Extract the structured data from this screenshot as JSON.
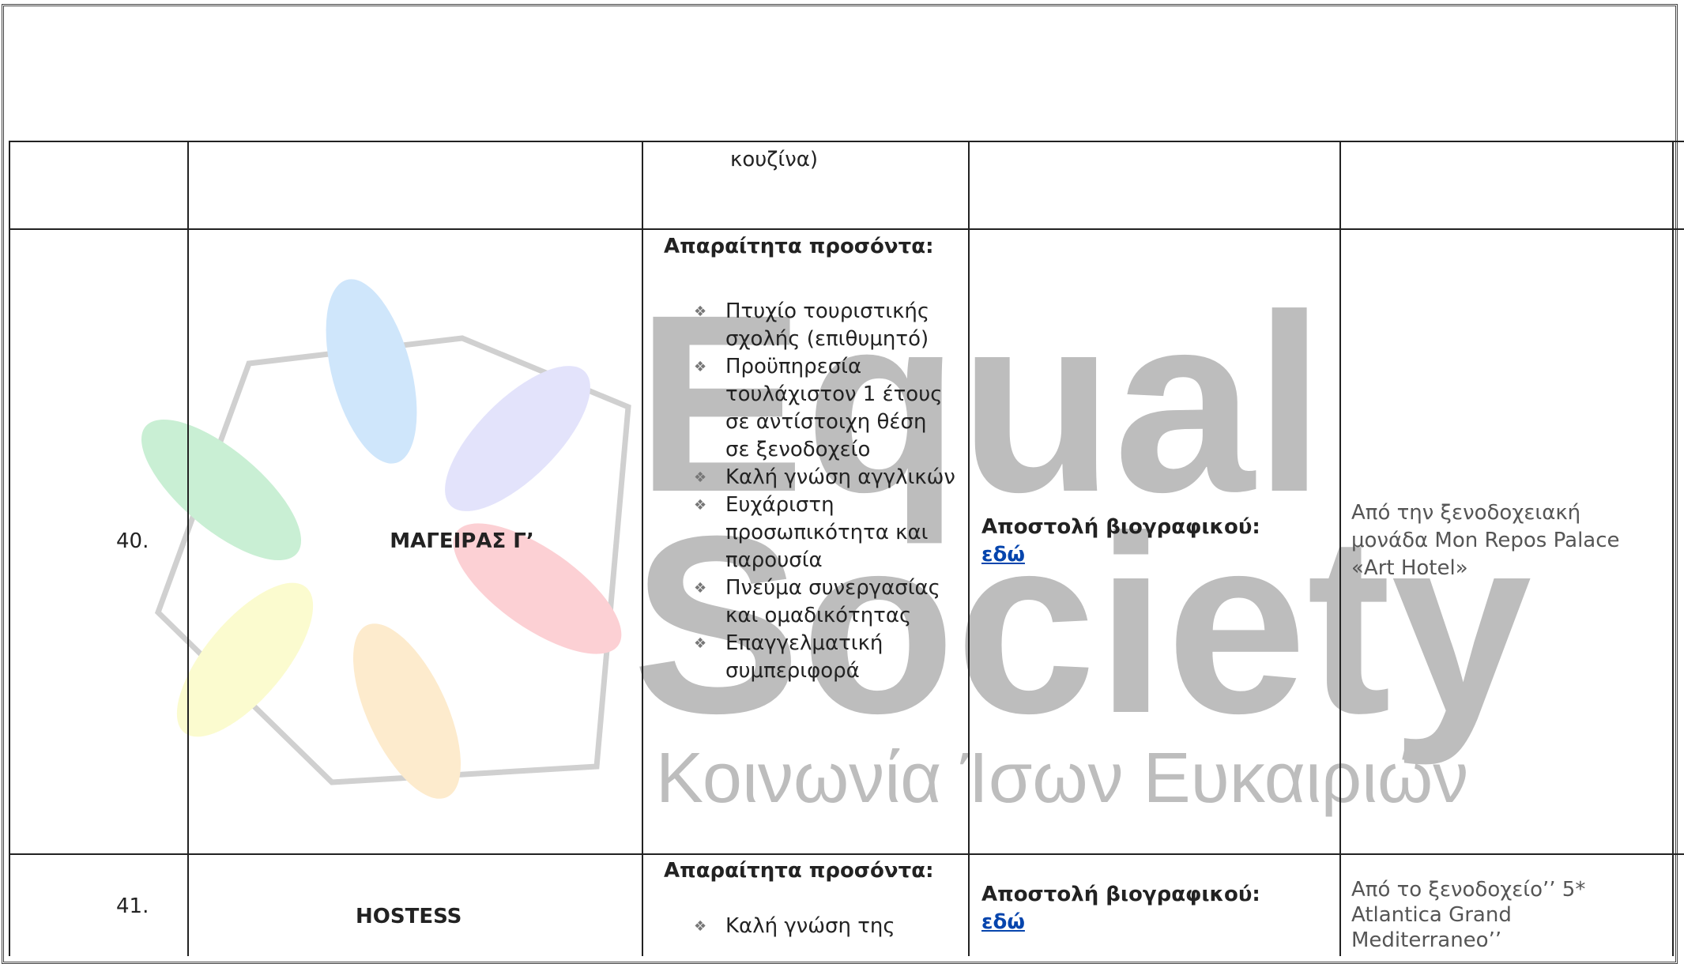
{
  "watermark": {
    "line1": "Equal",
    "line2": "Society",
    "line3": "Κοινωνία Ίσων Ευκαιριών"
  },
  "table": {
    "rows": [
      {
        "requirements_continued": "κουζίνα)"
      },
      {
        "number": "40.",
        "position": "ΜΑΓΕΙΡΑΣ Γ’",
        "requirements_heading": "Απαραίτητα προσόντα:",
        "requirements": [
          "Πτυχίο τουριστικής σχολής (επιθυμητό)",
          "Προϋπηρεσία τουλάχιστον 1 έτους σε αντίστοιχη θέση σε ξενοδοχείο",
          "Καλή γνώση αγγλικών",
          "Ευχάριστη προσωπικότητα και παρουσία",
          "Πνεύμα συνεργασίας και ομαδικότητας",
          "Επαγγελματική συμπεριφορά"
        ],
        "apply_label": "Αποστολή βιογραφικού:",
        "apply_link": "εδώ",
        "employer": "Από την ξενοδοχειακή μονάδα Mon Repos Palace «Art Hotel»"
      },
      {
        "number": "41.",
        "position": "HOSTESS",
        "requirements_heading": "Απαραίτητα προσόντα:",
        "requirements": [
          "Καλή γνώση της"
        ],
        "apply_label": "Αποστολή βιογραφικού:",
        "apply_link": "εδώ",
        "employer": "Από το ξενοδοχείο’’ 5* Atlantica Grand Mediterraneo’’"
      }
    ]
  }
}
